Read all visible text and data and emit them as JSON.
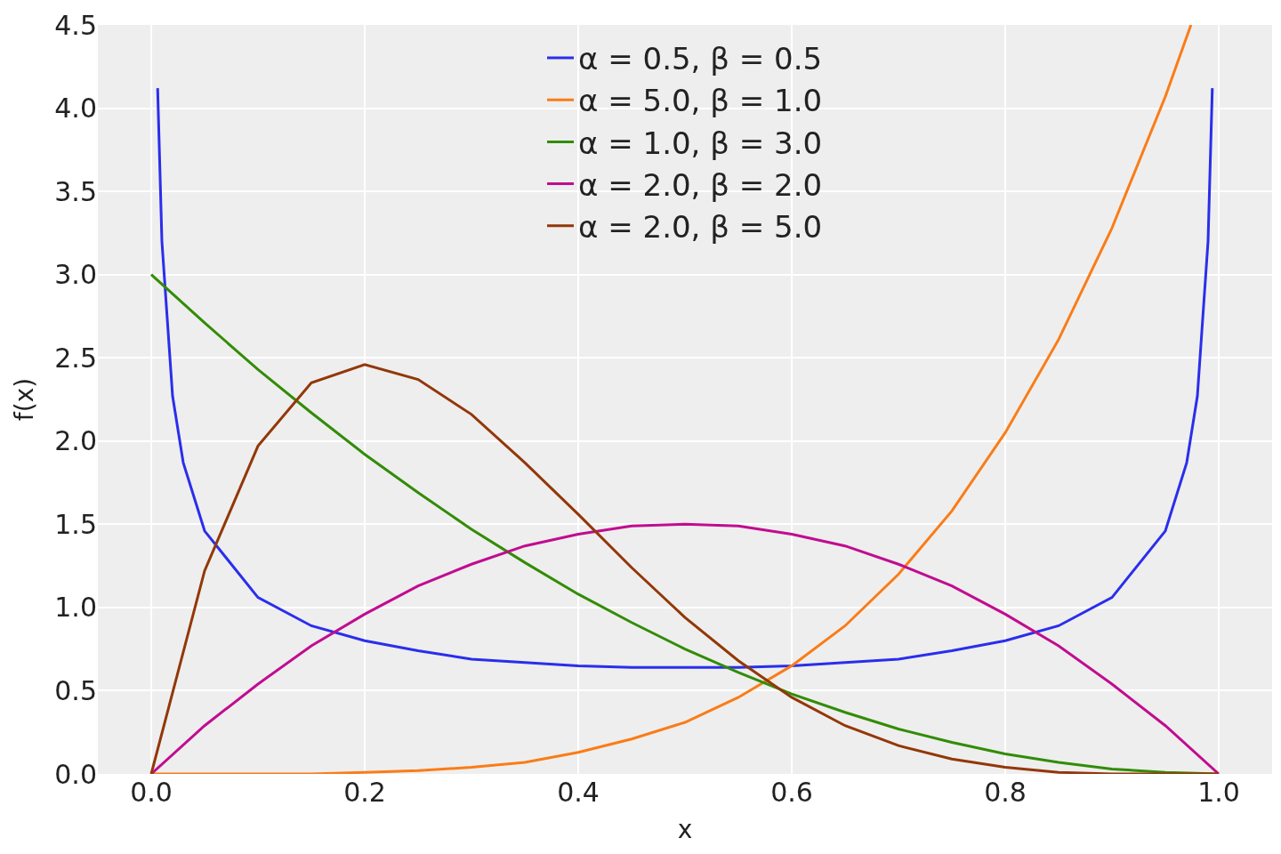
{
  "chart_data": {
    "type": "line",
    "xlabel": "x",
    "ylabel": "f(x)",
    "x": [
      0,
      0.05,
      0.1,
      0.15,
      0.2,
      0.25,
      0.3,
      0.35,
      0.4,
      0.45,
      0.5,
      0.55,
      0.6,
      0.65,
      0.7,
      0.75,
      0.8,
      0.85,
      0.9,
      0.95,
      1.0
    ],
    "series": [
      {
        "name": "α = 0.5, β = 0.5",
        "color": "#2a2eec",
        "x": [
          0.006,
          0.01,
          0.02,
          0.03,
          0.05,
          0.1,
          0.15,
          0.2,
          0.25,
          0.3,
          0.35,
          0.4,
          0.45,
          0.5,
          0.55,
          0.6,
          0.65,
          0.7,
          0.75,
          0.8,
          0.85,
          0.9,
          0.95,
          0.97,
          0.98,
          0.99,
          0.994
        ],
        "values": [
          4.12,
          3.2,
          2.27,
          1.87,
          1.46,
          1.06,
          0.89,
          0.8,
          0.74,
          0.69,
          0.67,
          0.65,
          0.64,
          0.64,
          0.64,
          0.65,
          0.67,
          0.69,
          0.74,
          0.8,
          0.89,
          1.06,
          1.46,
          1.87,
          2.27,
          3.2,
          4.12
        ]
      },
      {
        "name": "α = 5.0, β = 1.0",
        "color": "#fa7c17",
        "x": [
          0,
          0.05,
          0.1,
          0.15,
          0.2,
          0.25,
          0.3,
          0.35,
          0.4,
          0.45,
          0.5,
          0.55,
          0.6,
          0.65,
          0.7,
          0.75,
          0.8,
          0.85,
          0.9,
          0.95,
          0.974
        ],
        "values": [
          0,
          0.0,
          0.0,
          0.0,
          0.01,
          0.02,
          0.04,
          0.07,
          0.13,
          0.21,
          0.31,
          0.46,
          0.65,
          0.89,
          1.2,
          1.58,
          2.05,
          2.61,
          3.28,
          4.07,
          4.5
        ]
      },
      {
        "name": "α = 1.0, β = 3.0",
        "color": "#328c06",
        "values": [
          3.0,
          2.71,
          2.43,
          2.17,
          1.92,
          1.69,
          1.47,
          1.27,
          1.08,
          0.91,
          0.75,
          0.61,
          0.48,
          0.37,
          0.27,
          0.19,
          0.12,
          0.07,
          0.03,
          0.01,
          0
        ]
      },
      {
        "name": "α = 2.0, β = 2.0",
        "color": "#c10c90",
        "values": [
          0,
          0.29,
          0.54,
          0.77,
          0.96,
          1.13,
          1.26,
          1.37,
          1.44,
          1.49,
          1.5,
          1.49,
          1.44,
          1.37,
          1.26,
          1.13,
          0.96,
          0.77,
          0.54,
          0.29,
          0
        ]
      },
      {
        "name": "α = 2.0, β = 5.0",
        "color": "#933708",
        "values": [
          0,
          1.22,
          1.97,
          2.35,
          2.46,
          2.37,
          2.16,
          1.87,
          1.56,
          1.24,
          0.94,
          0.68,
          0.46,
          0.29,
          0.17,
          0.09,
          0.04,
          0.01,
          0.0,
          0.0,
          0
        ]
      }
    ],
    "xlim": [
      -0.05,
      1.05
    ],
    "xticks": [
      {
        "value": 0,
        "label": "0.0"
      },
      {
        "value": 0.2,
        "label": "0.2"
      },
      {
        "value": 0.4,
        "label": "0.4"
      },
      {
        "value": 0.6,
        "label": "0.6"
      },
      {
        "value": 0.8,
        "label": "0.8"
      },
      {
        "value": 1.0,
        "label": "1.0"
      }
    ],
    "ylim": [
      0,
      4.5
    ],
    "yticks": [
      {
        "value": 0,
        "label": "0.0"
      },
      {
        "value": 0.5,
        "label": "0.5"
      },
      {
        "value": 1.0,
        "label": "1.0"
      },
      {
        "value": 1.5,
        "label": "1.5"
      },
      {
        "value": 2.0,
        "label": "2.0"
      },
      {
        "value": 2.5,
        "label": "2.5"
      },
      {
        "value": 3.0,
        "label": "3.0"
      },
      {
        "value": 3.5,
        "label": "3.5"
      },
      {
        "value": 4.0,
        "label": "4.0"
      },
      {
        "value": 4.5,
        "label": "4.5"
      }
    ],
    "grid": true,
    "legend": "top",
    "marker": "none",
    "line_style": "solid"
  }
}
